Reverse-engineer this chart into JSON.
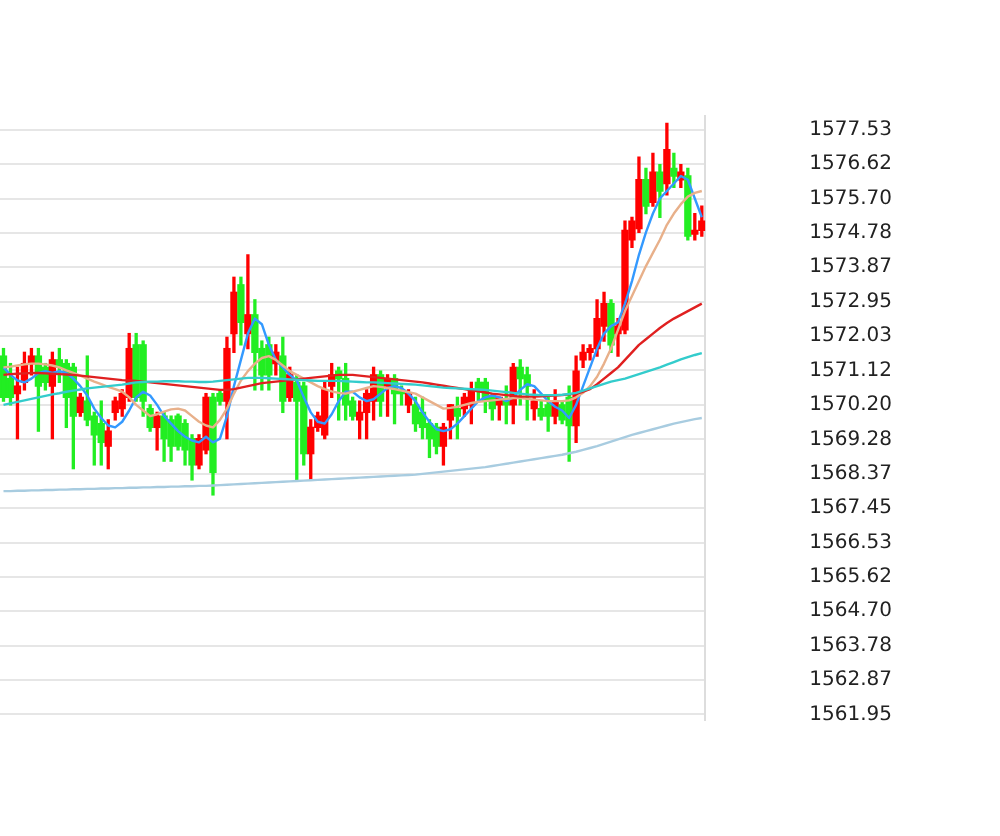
{
  "chart_data": {
    "type": "candlestick",
    "categories": [
      null,
      null,
      null,
      null,
      null,
      null,
      null,
      null,
      null,
      null,
      null,
      null,
      null,
      null,
      null,
      null,
      null,
      null,
      null,
      null,
      null,
      null,
      null,
      null,
      null,
      null,
      null,
      null,
      null,
      null,
      null,
      null,
      null,
      null,
      null,
      null,
      null,
      null,
      null,
      null,
      null,
      null,
      null,
      null,
      null,
      null,
      null,
      null,
      null,
      null,
      null,
      null,
      null,
      null,
      null,
      null,
      null,
      null,
      null,
      null,
      null,
      null,
      null,
      null,
      null,
      null,
      null,
      null,
      null,
      null,
      null,
      null,
      null,
      null,
      null,
      null,
      null,
      null,
      null,
      null,
      null,
      null,
      null,
      null,
      null,
      null,
      null,
      null,
      null,
      null,
      null,
      null,
      null,
      null,
      null,
      null,
      null,
      null,
      null,
      null,
      null
    ],
    "ylim": [
      1561.8,
      1577.9
    ],
    "yticks": [
      1561.95,
      1562.87,
      1563.78,
      {
        "value": 1564.7,
        "label": "1564.70"
      },
      1565.62,
      1566.53,
      1567.45,
      1568.37,
      1569.28,
      {
        "value": 1570.2,
        "label": "1570.20"
      },
      1571.12,
      1572.03,
      1572.95,
      1573.87,
      1574.78,
      {
        "value": 1575.7,
        "label": "1575.70"
      },
      1576.62,
      1577.53
    ],
    "grid": "y",
    "legend": false,
    "tick_labels": "y",
    "marker": "none",
    "line_style": "solid",
    "series": [
      {
        "type": "candlestick",
        "ohlc": [
          [
            1571.5,
            1571.7,
            1570.3,
            1570.4
          ],
          [
            1570.9,
            1571.3,
            1570.2,
            1570.4
          ],
          [
            1570.5,
            1571.2,
            1569.3,
            1570.7
          ],
          [
            1570.8,
            1571.6,
            1570.6,
            1571.3
          ],
          [
            1571.3,
            1571.7,
            1571.0,
            1571.5
          ],
          [
            1571.5,
            1571.7,
            1569.5,
            1570.7
          ],
          [
            1571.2,
            1571.3,
            1570.6,
            1570.8
          ],
          [
            1570.7,
            1571.6,
            1569.3,
            1571.4
          ],
          [
            1571.4,
            1571.7,
            1570.8,
            1571.2
          ],
          [
            1571.3,
            1571.4,
            1569.6,
            1570.4
          ],
          [
            1571.2,
            1571.3,
            1568.5,
            1569.9
          ],
          [
            1570.0,
            1570.5,
            1569.9,
            1570.4
          ],
          [
            1570.3,
            1571.5,
            1569.65,
            1569.8
          ],
          [
            1569.9,
            1570.0,
            1568.6,
            1569.4
          ],
          [
            1569.7,
            1570.3,
            1568.6,
            1569.2
          ],
          [
            1569.1,
            1569.8,
            1568.5,
            1569.5
          ],
          [
            1570.0,
            1570.4,
            1569.8,
            1570.3
          ],
          [
            1570.1,
            1570.6,
            1569.9,
            1570.5
          ],
          [
            1570.4,
            1572.1,
            1570.3,
            1571.7
          ],
          [
            1571.8,
            1572.1,
            1570.3,
            1570.4
          ],
          [
            1571.8,
            1571.9,
            1569.9,
            1570.3
          ],
          [
            1570.1,
            1570.2,
            1569.5,
            1569.6
          ],
          [
            1569.6,
            1570.0,
            1569.0,
            1569.9
          ],
          [
            1569.9,
            1570.0,
            1568.7,
            1569.3
          ],
          [
            1569.8,
            1569.9,
            1568.7,
            1569.1
          ],
          [
            1569.9,
            1569.95,
            1569.0,
            1569.1
          ],
          [
            1569.7,
            1569.8,
            1568.6,
            1569.0
          ],
          [
            1569.3,
            1569.4,
            1568.2,
            1568.6
          ],
          [
            1568.6,
            1569.4,
            1568.5,
            1569.3
          ],
          [
            1569.0,
            1570.5,
            1568.9,
            1570.4
          ],
          [
            1570.4,
            1570.5,
            1567.8,
            1568.4
          ],
          [
            1570.5,
            1570.6,
            1570.2,
            1570.3
          ],
          [
            1570.3,
            1572.0,
            1569.3,
            1571.7
          ],
          [
            1572.1,
            1573.6,
            1571.6,
            1573.2
          ],
          [
            1573.4,
            1573.6,
            1571.8,
            1572.4
          ],
          [
            1572.1,
            1574.2,
            1571.7,
            1572.6
          ],
          [
            1572.6,
            1573.0,
            1570.6,
            1571.6
          ],
          [
            1571.7,
            1571.9,
            1570.6,
            1571.0
          ],
          [
            1571.8,
            1572.0,
            1570.6,
            1571.0
          ],
          [
            1571.3,
            1571.8,
            1571.0,
            1571.6
          ],
          [
            1571.5,
            1572.0,
            1570.0,
            1570.3
          ],
          [
            1570.4,
            1571.2,
            1570.3,
            1571.0
          ],
          [
            1570.8,
            1571.0,
            1568.2,
            1570.3
          ],
          [
            1570.7,
            1570.8,
            1568.6,
            1568.9
          ],
          [
            1568.9,
            1569.8,
            1568.2,
            1569.6
          ],
          [
            1569.6,
            1570.0,
            1569.5,
            1569.9
          ],
          [
            1569.4,
            1570.8,
            1569.3,
            1570.6
          ],
          [
            1570.7,
            1571.3,
            1570.4,
            1571.0
          ],
          [
            1571.1,
            1571.2,
            1569.8,
            1570.9
          ],
          [
            1570.9,
            1571.3,
            1569.8,
            1570.2
          ],
          [
            1570.3,
            1570.4,
            1569.8,
            1569.9
          ],
          [
            1569.8,
            1570.3,
            1569.3,
            1570.0
          ],
          [
            1570.0,
            1570.6,
            1569.3,
            1570.5
          ],
          [
            1570.3,
            1571.2,
            1569.8,
            1571.0
          ],
          [
            1571.0,
            1571.1,
            1569.9,
            1570.3
          ],
          [
            1570.7,
            1571.0,
            1569.9,
            1570.9
          ],
          [
            1570.9,
            1571.0,
            1569.7,
            1570.5
          ],
          [
            1570.6,
            1570.7,
            1570.2,
            1570.5
          ],
          [
            1570.2,
            1570.6,
            1570.0,
            1570.5
          ],
          [
            1570.2,
            1570.4,
            1569.5,
            1569.7
          ],
          [
            1570.0,
            1570.4,
            1569.3,
            1569.6
          ],
          [
            1569.7,
            1569.8,
            1568.8,
            1569.3
          ],
          [
            1569.6,
            1569.7,
            1568.9,
            1569.1
          ],
          [
            1569.1,
            1569.7,
            1568.6,
            1569.6
          ],
          [
            1569.8,
            1570.2,
            1569.3,
            1570.2
          ],
          [
            1570.1,
            1570.4,
            1569.3,
            1569.9
          ],
          [
            1570.1,
            1570.5,
            1569.9,
            1570.4
          ],
          [
            1570.2,
            1570.8,
            1569.7,
            1570.6
          ],
          [
            1570.8,
            1570.9,
            1570.3,
            1570.6
          ],
          [
            1570.8,
            1570.9,
            1570.0,
            1570.3
          ],
          [
            1570.4,
            1570.5,
            1569.8,
            1570.1
          ],
          [
            1570.2,
            1570.4,
            1569.8,
            1570.4
          ],
          [
            1570.3,
            1570.7,
            1569.7,
            1570.2
          ],
          [
            1570.2,
            1571.3,
            1569.7,
            1571.2
          ],
          [
            1571.2,
            1571.4,
            1570.2,
            1570.9
          ],
          [
            1571.0,
            1571.2,
            1569.8,
            1570.7
          ],
          [
            1570.1,
            1570.6,
            1569.8,
            1570.3
          ],
          [
            1570.1,
            1570.3,
            1569.8,
            1569.9
          ],
          [
            1570.2,
            1570.4,
            1569.5,
            1569.9
          ],
          [
            1569.9,
            1570.6,
            1569.7,
            1570.3
          ],
          [
            1570.2,
            1570.3,
            1569.7,
            1569.8
          ],
          [
            1570.4,
            1570.7,
            1568.7,
            1569.65
          ],
          [
            1569.65,
            1571.5,
            1569.2,
            1571.1
          ],
          [
            1571.4,
            1571.8,
            1571.2,
            1571.6
          ],
          [
            1571.6,
            1571.8,
            1571.4,
            1571.7
          ],
          [
            1571.7,
            1573.0,
            1571.5,
            1572.5
          ],
          [
            1572.3,
            1573.2,
            1571.9,
            1572.9
          ],
          [
            1572.9,
            1573.0,
            1571.6,
            1571.8
          ],
          [
            1572.1,
            1572.5,
            1571.5,
            1572.3
          ],
          [
            1572.2,
            1575.1,
            1572.1,
            1574.85
          ],
          [
            1574.6,
            1575.2,
            1574.4,
            1575.1
          ],
          [
            1574.9,
            1576.8,
            1574.8,
            1576.2
          ],
          [
            1576.2,
            1576.5,
            1575.3,
            1575.5
          ],
          [
            1575.6,
            1576.9,
            1575.5,
            1576.4
          ],
          [
            1576.4,
            1576.6,
            1575.2,
            1575.9
          ],
          [
            1576.1,
            1577.7,
            1575.8,
            1577.0
          ],
          [
            1576.5,
            1576.9,
            1576.0,
            1576.3
          ],
          [
            1576.2,
            1576.6,
            1576.0,
            1576.4
          ],
          [
            1576.3,
            1576.5,
            1574.6,
            1574.7
          ],
          [
            1574.75,
            1575.3,
            1574.6,
            1574.85
          ],
          [
            1574.85,
            1575.5,
            1574.7,
            1575.1
          ]
        ],
        "colors": [
          "#22ee22",
          "#22ee22",
          "#ff0000",
          "#ff0000",
          "#ff0000",
          "#22ee22",
          "#22ee22",
          "#ff0000",
          "#22ee22",
          "#22ee22",
          "#22ee22",
          "#ff0000",
          "#22ee22",
          "#22ee22",
          "#22ee22",
          "#ff0000",
          "#ff0000",
          "#ff0000",
          "#ff0000",
          "#22ee22",
          "#22ee22",
          "#22ee22",
          "#ff0000",
          "#22ee22",
          "#22ee22",
          "#22ee22",
          "#22ee22",
          "#22ee22",
          "#ff0000",
          "#ff0000",
          "#22ee22",
          "#22ee22",
          "#ff0000",
          "#ff0000",
          "#22ee22",
          "#ff0000",
          "#22ee22",
          "#22ee22",
          "#22ee22",
          "#ff0000",
          "#22ee22",
          "#ff0000",
          "#22ee22",
          "#22ee22",
          "#ff0000",
          "#ff0000",
          "#ff0000",
          "#ff0000",
          "#22ee22",
          "#22ee22",
          "#22ee22",
          "#ff0000",
          "#ff0000",
          "#ff0000",
          "#22ee22",
          "#ff0000",
          "#22ee22",
          "#22ee22",
          "#ff0000",
          "#22ee22",
          "#22ee22",
          "#22ee22",
          "#22ee22",
          "#ff0000",
          "#ff0000",
          "#22ee22",
          "#ff0000",
          "#ff0000",
          "#22ee22",
          "#22ee22",
          "#22ee22",
          "#ff0000",
          "#22ee22",
          "#ff0000",
          "#22ee22",
          "#22ee22",
          "#ff0000",
          "#22ee22",
          "#22ee22",
          "#ff0000",
          "#22ee22",
          "#22ee22",
          "#ff0000",
          "#ff0000",
          "#ff0000",
          "#ff0000",
          "#ff0000",
          "#22ee22",
          "#ff0000",
          "#ff0000",
          "#ff0000",
          "#ff0000",
          "#22ee22",
          "#ff0000",
          "#22ee22",
          "#ff0000",
          "#22ee22",
          "#ff0000",
          "#22ee22",
          "#ff0000",
          "#ff0000"
        ]
      },
      {
        "type": "line",
        "color": "#a8cce0",
        "values": [
          1567.9,
          1567.9,
          1567.91,
          1567.91,
          1567.92,
          1567.92,
          1567.93,
          1567.93,
          1567.94,
          1567.94,
          1567.95,
          1567.95,
          1567.96,
          1567.96,
          1567.97,
          1567.97,
          1567.98,
          1567.98,
          1567.99,
          1567.99,
          1568.0,
          1568.0,
          1568.01,
          1568.01,
          1568.02,
          1568.02,
          1568.03,
          1568.03,
          1568.04,
          1568.04,
          1568.05,
          1568.06,
          1568.07,
          1568.08,
          1568.09,
          1568.1,
          1568.11,
          1568.12,
          1568.13,
          1568.14,
          1568.15,
          1568.16,
          1568.17,
          1568.18,
          1568.19,
          1568.2,
          1568.21,
          1568.22,
          1568.23,
          1568.24,
          1568.25,
          1568.26,
          1568.27,
          1568.28,
          1568.29,
          1568.3,
          1568.31,
          1568.32,
          1568.33,
          1568.34,
          1568.36,
          1568.38,
          1568.4,
          1568.42,
          1568.44,
          1568.46,
          1568.48,
          1568.5,
          1568.52,
          1568.54,
          1568.57,
          1568.6,
          1568.63,
          1568.66,
          1568.69,
          1568.72,
          1568.75,
          1568.78,
          1568.81,
          1568.84,
          1568.87,
          1568.91,
          1568.95,
          1569.0,
          1569.05,
          1569.1,
          1569.16,
          1569.22,
          1569.28,
          1569.34,
          1569.4,
          1569.45,
          1569.5,
          1569.55,
          1569.6,
          1569.65,
          1569.7,
          1569.74,
          1569.78,
          1569.82,
          1569.85
        ]
      },
      {
        "type": "line",
        "color": "#33cccc",
        "values": [
          1570.2,
          1570.24,
          1570.28,
          1570.32,
          1570.36,
          1570.4,
          1570.44,
          1570.48,
          1570.51,
          1570.55,
          1570.58,
          1570.61,
          1570.64,
          1570.66,
          1570.68,
          1570.7,
          1570.72,
          1570.74,
          1570.77,
          1570.8,
          1570.81,
          1570.82,
          1570.82,
          1570.83,
          1570.83,
          1570.83,
          1570.82,
          1570.82,
          1570.81,
          1570.81,
          1570.82,
          1570.84,
          1570.86,
          1570.88,
          1570.9,
          1570.92,
          1570.92,
          1570.92,
          1570.91,
          1570.9,
          1570.89,
          1570.88,
          1570.87,
          1570.86,
          1570.85,
          1570.84,
          1570.84,
          1570.84,
          1570.84,
          1570.83,
          1570.82,
          1570.81,
          1570.8,
          1570.8,
          1570.79,
          1570.78,
          1570.77,
          1570.76,
          1570.75,
          1570.74,
          1570.72,
          1570.7,
          1570.68,
          1570.66,
          1570.65,
          1570.64,
          1570.63,
          1570.62,
          1570.61,
          1570.6,
          1570.58,
          1570.56,
          1570.54,
          1570.52,
          1570.5,
          1570.48,
          1570.47,
          1570.46,
          1570.46,
          1570.46,
          1570.47,
          1570.49,
          1570.52,
          1570.58,
          1570.64,
          1570.7,
          1570.76,
          1570.82,
          1570.86,
          1570.9,
          1570.96,
          1571.02,
          1571.08,
          1571.14,
          1571.2,
          1571.27,
          1571.34,
          1571.41,
          1571.47,
          1571.53,
          1571.58
        ]
      },
      {
        "type": "line",
        "color": "#e02020",
        "values": [
          1571.0,
          1571.02,
          1571.03,
          1571.04,
          1571.05,
          1571.05,
          1571.04,
          1571.03,
          1571.02,
          1571.01,
          1571.0,
          1570.98,
          1570.96,
          1570.94,
          1570.92,
          1570.9,
          1570.88,
          1570.86,
          1570.85,
          1570.84,
          1570.82,
          1570.8,
          1570.78,
          1570.76,
          1570.74,
          1570.72,
          1570.7,
          1570.68,
          1570.66,
          1570.64,
          1570.62,
          1570.6,
          1570.6,
          1570.62,
          1570.66,
          1570.7,
          1570.74,
          1570.78,
          1570.8,
          1570.82,
          1570.84,
          1570.86,
          1570.88,
          1570.9,
          1570.92,
          1570.94,
          1570.96,
          1570.98,
          1571.0,
          1571.0,
          1571.0,
          1570.98,
          1570.96,
          1570.94,
          1570.92,
          1570.9,
          1570.88,
          1570.86,
          1570.84,
          1570.82,
          1570.8,
          1570.77,
          1570.74,
          1570.71,
          1570.68,
          1570.65,
          1570.62,
          1570.59,
          1570.56,
          1570.53,
          1570.5,
          1570.48,
          1570.46,
          1570.44,
          1570.42,
          1570.42,
          1570.42,
          1570.43,
          1570.44,
          1570.45,
          1570.46,
          1570.48,
          1570.5,
          1570.55,
          1570.62,
          1570.75,
          1570.9,
          1571.05,
          1571.2,
          1571.4,
          1571.6,
          1571.8,
          1571.95,
          1572.1,
          1572.25,
          1572.38,
          1572.5,
          1572.6,
          1572.7,
          1572.8,
          1572.9
        ]
      },
      {
        "type": "line",
        "color": "#e8b08a",
        "values": [
          1571.2,
          1571.22,
          1571.25,
          1571.28,
          1571.3,
          1571.3,
          1571.28,
          1571.25,
          1571.2,
          1571.12,
          1571.05,
          1570.98,
          1570.9,
          1570.82,
          1570.75,
          1570.68,
          1570.62,
          1570.55,
          1570.4,
          1570.2,
          1570.05,
          1569.9,
          1569.95,
          1570.02,
          1570.08,
          1570.1,
          1570.05,
          1569.9,
          1569.75,
          1569.65,
          1569.6,
          1569.8,
          1570.1,
          1570.5,
          1570.85,
          1571.1,
          1571.3,
          1571.45,
          1571.5,
          1571.4,
          1571.25,
          1571.1,
          1571.0,
          1570.9,
          1570.8,
          1570.7,
          1570.62,
          1570.56,
          1570.52,
          1570.5,
          1570.55,
          1570.6,
          1570.65,
          1570.7,
          1570.68,
          1570.65,
          1570.62,
          1570.58,
          1570.54,
          1570.5,
          1570.4,
          1570.3,
          1570.2,
          1570.1,
          1570.12,
          1570.15,
          1570.2,
          1570.25,
          1570.28,
          1570.3,
          1570.32,
          1570.34,
          1570.36,
          1570.38,
          1570.38,
          1570.36,
          1570.34,
          1570.32,
          1570.3,
          1570.3,
          1570.3,
          1570.32,
          1570.4,
          1570.52,
          1570.7,
          1570.95,
          1571.3,
          1571.7,
          1572.2,
          1572.7,
          1573.1,
          1573.5,
          1573.9,
          1574.25,
          1574.6,
          1575.0,
          1575.3,
          1575.55,
          1575.75,
          1575.85,
          1575.9
        ]
      },
      {
        "type": "line",
        "color": "#3399ff",
        "values": [
          1571.2,
          1571.0,
          1570.85,
          1570.8,
          1570.9,
          1571.05,
          1571.1,
          1571.05,
          1571.1,
          1571.05,
          1570.9,
          1570.7,
          1570.45,
          1570.1,
          1569.85,
          1569.65,
          1569.6,
          1569.75,
          1570.05,
          1570.4,
          1570.55,
          1570.45,
          1570.2,
          1569.9,
          1569.7,
          1569.5,
          1569.35,
          1569.25,
          1569.2,
          1569.35,
          1569.2,
          1569.3,
          1569.9,
          1570.7,
          1571.4,
          1572.1,
          1572.5,
          1572.35,
          1571.8,
          1571.4,
          1571.2,
          1571.0,
          1570.85,
          1570.4,
          1570.0,
          1569.75,
          1569.7,
          1569.95,
          1570.3,
          1570.55,
          1570.55,
          1570.4,
          1570.3,
          1570.35,
          1570.5,
          1570.65,
          1570.7,
          1570.65,
          1570.5,
          1570.3,
          1570.0,
          1569.75,
          1569.55,
          1569.5,
          1569.55,
          1569.7,
          1569.9,
          1570.1,
          1570.3,
          1570.4,
          1570.45,
          1570.4,
          1570.3,
          1570.4,
          1570.6,
          1570.75,
          1570.7,
          1570.5,
          1570.3,
          1570.15,
          1570.05,
          1569.85,
          1570.2,
          1570.7,
          1571.2,
          1571.7,
          1572.1,
          1572.3,
          1572.4,
          1572.9,
          1573.5,
          1574.2,
          1574.8,
          1575.3,
          1575.7,
          1575.9,
          1576.1,
          1576.3,
          1576.2,
          1575.7,
          1575.2
        ]
      }
    ]
  }
}
